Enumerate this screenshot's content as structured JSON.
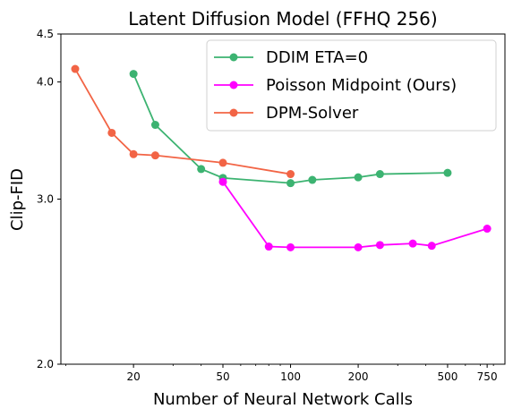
{
  "chart_data": {
    "type": "line",
    "title": "Latent Diffusion Model (FFHQ 256)",
    "xlabel": "Number of Neural Network Calls",
    "ylabel": "Clip-FID",
    "xscale": "log",
    "yscale": "log",
    "xlim": [
      9.5,
      900
    ],
    "ylim": [
      2.0,
      4.5
    ],
    "xticks": [
      20,
      50,
      100,
      200,
      500,
      750
    ],
    "xtick_labels": [
      "20",
      "50",
      "100",
      "200",
      "500",
      "750"
    ],
    "yticks": [
      2.0,
      3.0,
      4.0,
      4.5
    ],
    "ytick_labels": [
      "2.0",
      "3.0",
      "4.0",
      "4.5"
    ],
    "grid": false,
    "legend_position": "top-right",
    "series": [
      {
        "name": "DDIM ETA=0",
        "color": "#3cb371",
        "x": [
          20,
          25,
          40,
          50,
          100,
          125,
          200,
          250,
          500
        ],
        "y": [
          4.08,
          3.6,
          3.23,
          3.16,
          3.12,
          3.145,
          3.165,
          3.19,
          3.2
        ]
      },
      {
        "name": "Poisson Midpoint (Ours)",
        "color": "#ff00ff",
        "x": [
          50,
          80,
          100,
          200,
          250,
          350,
          425,
          750
        ],
        "y": [
          3.13,
          2.67,
          2.665,
          2.665,
          2.68,
          2.69,
          2.675,
          2.79
        ]
      },
      {
        "name": "DPM-Solver",
        "color": "#f26445",
        "x": [
          11,
          16,
          20,
          25,
          50,
          100
        ],
        "y": [
          4.13,
          3.53,
          3.35,
          3.34,
          3.28,
          3.19
        ]
      }
    ]
  }
}
